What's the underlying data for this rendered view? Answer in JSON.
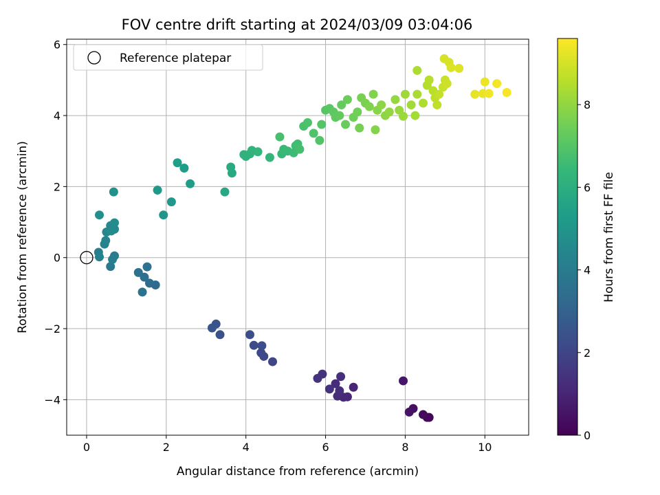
{
  "chart_data": {
    "type": "scatter",
    "title": "FOV centre drift starting at 2024/03/09 03:04:06",
    "xlabel": "Angular distance from reference (arcmin)",
    "ylabel": "Rotation from reference (arcmin)",
    "colorbar_label": "Hours from first FF file",
    "xlim": [
      -0.5,
      11.1
    ],
    "ylim": [
      -5.0,
      6.15
    ],
    "clim": [
      0,
      9.6
    ],
    "x_ticks": [
      0,
      2,
      4,
      6,
      8,
      10
    ],
    "y_ticks": [
      -4,
      -2,
      0,
      2,
      4,
      6
    ],
    "colorbar_ticks": [
      0,
      2,
      4,
      6,
      8
    ],
    "grid": true,
    "legend": {
      "placement": "upper-left",
      "entries": [
        {
          "label": "Reference platepar",
          "marker": "open-circle"
        }
      ]
    },
    "reference_point": {
      "x": 0,
      "y": 0
    },
    "colormap": [
      "#440154",
      "#482878",
      "#3e4989",
      "#31688e",
      "#26828e",
      "#1f9e89",
      "#35b779",
      "#6ece58",
      "#b5de2b",
      "#fde725"
    ],
    "points": [
      [
        8.6,
        -4.5,
        0.1
      ],
      [
        8.55,
        -4.5,
        0.2
      ],
      [
        8.45,
        -4.42,
        0.3
      ],
      [
        8.2,
        -4.25,
        0.4
      ],
      [
        8.1,
        -4.35,
        0.5
      ],
      [
        7.95,
        -3.47,
        0.6
      ],
      [
        6.7,
        -3.65,
        1.0
      ],
      [
        6.55,
        -3.92,
        1.05
      ],
      [
        6.45,
        -3.93,
        1.1
      ],
      [
        6.3,
        -3.9,
        1.15
      ],
      [
        6.25,
        -3.55,
        1.2
      ],
      [
        6.35,
        -3.75,
        1.25
      ],
      [
        6.38,
        -3.35,
        1.3
      ],
      [
        6.1,
        -3.7,
        1.35
      ],
      [
        5.92,
        -3.28,
        1.4
      ],
      [
        5.8,
        -3.4,
        1.45
      ],
      [
        4.67,
        -2.93,
        2.0
      ],
      [
        4.45,
        -2.78,
        2.1
      ],
      [
        4.38,
        -2.68,
        2.15
      ],
      [
        4.2,
        -2.47,
        2.2
      ],
      [
        4.4,
        -2.48,
        2.25
      ],
      [
        4.1,
        -2.17,
        2.3
      ],
      [
        3.35,
        -2.17,
        2.4
      ],
      [
        3.25,
        -1.87,
        2.5
      ],
      [
        3.15,
        -1.98,
        2.55
      ],
      [
        1.73,
        -0.77,
        3.3
      ],
      [
        1.58,
        -0.72,
        3.4
      ],
      [
        1.45,
        -0.55,
        3.5
      ],
      [
        1.3,
        -0.42,
        3.55
      ],
      [
        1.52,
        -0.26,
        3.6
      ],
      [
        1.4,
        -0.97,
        3.65
      ],
      [
        0.6,
        -0.25,
        3.9
      ],
      [
        0.7,
        0.05,
        4.0
      ],
      [
        0.65,
        -0.05,
        4.05
      ],
      [
        0.3,
        0.15,
        4.15
      ],
      [
        0.32,
        0.02,
        4.2
      ],
      [
        0.45,
        0.38,
        4.3
      ],
      [
        0.48,
        0.48,
        4.35
      ],
      [
        0.5,
        0.72,
        4.4
      ],
      [
        0.6,
        0.9,
        4.5
      ],
      [
        0.7,
        0.8,
        4.55
      ],
      [
        0.62,
        0.75,
        4.6
      ],
      [
        0.7,
        0.98,
        4.65
      ],
      [
        0.32,
        1.2,
        4.75
      ],
      [
        0.68,
        1.85,
        4.85
      ],
      [
        1.93,
        1.2,
        5.0
      ],
      [
        2.13,
        1.57,
        5.1
      ],
      [
        1.78,
        1.9,
        5.15
      ],
      [
        2.6,
        2.08,
        5.25
      ],
      [
        2.45,
        2.52,
        5.3
      ],
      [
        2.28,
        2.67,
        5.35
      ],
      [
        3.47,
        1.85,
        5.7
      ],
      [
        3.65,
        2.38,
        5.8
      ],
      [
        3.62,
        2.55,
        5.85
      ],
      [
        3.95,
        2.9,
        6.1
      ],
      [
        4.0,
        2.85,
        6.15
      ],
      [
        4.1,
        2.92,
        6.2
      ],
      [
        4.15,
        3.02,
        6.25
      ],
      [
        4.3,
        2.98,
        6.3
      ],
      [
        4.6,
        2.82,
        6.35
      ],
      [
        4.9,
        2.92,
        6.4
      ],
      [
        4.95,
        3.05,
        6.45
      ],
      [
        5.05,
        3.0,
        6.5
      ],
      [
        5.2,
        2.95,
        6.55
      ],
      [
        5.25,
        3.15,
        6.6
      ],
      [
        5.3,
        3.2,
        6.65
      ],
      [
        5.35,
        3.05,
        6.7
      ],
      [
        4.85,
        3.4,
        6.75
      ],
      [
        5.45,
        3.7,
        6.8
      ],
      [
        5.55,
        3.8,
        6.85
      ],
      [
        5.7,
        3.5,
        6.9
      ],
      [
        5.85,
        3.3,
        6.95
      ],
      [
        5.9,
        3.75,
        7.0
      ],
      [
        6.0,
        4.15,
        7.05
      ],
      [
        6.1,
        4.2,
        7.1
      ],
      [
        6.2,
        4.1,
        7.15
      ],
      [
        6.25,
        3.95,
        7.2
      ],
      [
        6.35,
        4.0,
        7.25
      ],
      [
        6.4,
        4.3,
        7.3
      ],
      [
        6.5,
        3.75,
        7.35
      ],
      [
        6.55,
        4.45,
        7.4
      ],
      [
        6.7,
        3.95,
        7.45
      ],
      [
        6.8,
        4.1,
        7.5
      ],
      [
        6.85,
        3.65,
        7.55
      ],
      [
        6.9,
        4.5,
        7.6
      ],
      [
        7.0,
        4.35,
        7.65
      ],
      [
        7.1,
        4.25,
        7.7
      ],
      [
        7.2,
        4.6,
        7.75
      ],
      [
        7.25,
        3.6,
        7.8
      ],
      [
        7.3,
        4.15,
        7.85
      ],
      [
        7.4,
        4.3,
        7.9
      ],
      [
        7.5,
        4.0,
        7.95
      ],
      [
        7.6,
        4.1,
        8.0
      ],
      [
        7.75,
        4.45,
        8.05
      ],
      [
        7.85,
        4.15,
        8.1
      ],
      [
        7.95,
        3.98,
        8.15
      ],
      [
        8.0,
        4.6,
        8.2
      ],
      [
        8.15,
        4.3,
        8.25
      ],
      [
        8.25,
        4.0,
        8.3
      ],
      [
        8.3,
        4.6,
        8.35
      ],
      [
        8.3,
        5.27,
        8.4
      ],
      [
        8.45,
        4.35,
        8.45
      ],
      [
        8.55,
        4.85,
        8.5
      ],
      [
        8.6,
        5.0,
        8.55
      ],
      [
        8.7,
        4.7,
        8.6
      ],
      [
        8.75,
        4.5,
        8.65
      ],
      [
        8.8,
        4.3,
        8.7
      ],
      [
        8.85,
        4.6,
        8.75
      ],
      [
        8.95,
        4.8,
        8.8
      ],
      [
        9.0,
        5.0,
        8.85
      ],
      [
        9.05,
        4.9,
        8.9
      ],
      [
        8.98,
        5.6,
        9.0
      ],
      [
        9.1,
        5.5,
        9.05
      ],
      [
        9.15,
        5.35,
        9.1
      ],
      [
        9.35,
        5.33,
        9.15
      ],
      [
        9.75,
        4.6,
        9.25
      ],
      [
        9.95,
        4.62,
        9.3
      ],
      [
        10.0,
        4.95,
        9.35
      ],
      [
        10.1,
        4.62,
        9.4
      ],
      [
        10.3,
        4.9,
        9.45
      ],
      [
        10.55,
        4.65,
        9.5
      ]
    ]
  }
}
